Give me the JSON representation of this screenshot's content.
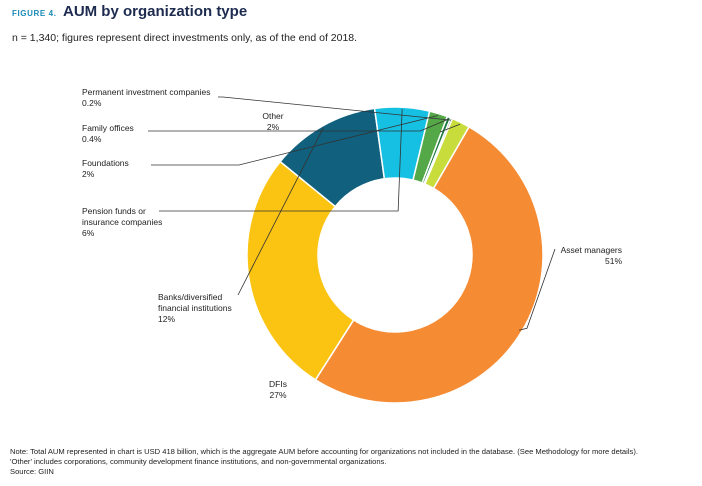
{
  "header": {
    "figure_label": "FIGURE 4.",
    "title": "AUM by organization type"
  },
  "subtitle": "n = 1,340; figures represent direct investments only, as of the end of 2018.",
  "chart_data": {
    "type": "pie",
    "style": "donut",
    "title": "AUM by organization type",
    "unit": "%",
    "slices": [
      {
        "label": "Asset managers",
        "value": 51,
        "display": "51%",
        "color": "#f58b33"
      },
      {
        "label": "DFIs",
        "value": 27,
        "display": "27%",
        "color": "#fbc412"
      },
      {
        "label": "Banks/diversified financial institutions",
        "value": 12,
        "display": "12%",
        "color": "#10607e"
      },
      {
        "label": "Pension funds or insurance companies",
        "value": 6,
        "display": "6%",
        "color": "#16c0e3"
      },
      {
        "label": "Foundations",
        "value": 2,
        "display": "2%",
        "color": "#54a847"
      },
      {
        "label": "Family offices",
        "value": 0.4,
        "display": "0.4%",
        "color": "#1d7a3f"
      },
      {
        "label": "Permanent investment companies",
        "value": 0.2,
        "display": "0.2%",
        "color": "#2a3f73"
      },
      {
        "label": "Other",
        "value": 2,
        "display": "2%",
        "color": "#c8dc3c"
      }
    ]
  },
  "labels": {
    "asset_managers": {
      "lines": [
        "Asset managers"
      ],
      "pct": "51%"
    },
    "dfis": {
      "lines": [
        "DFIs"
      ],
      "pct": "27%"
    },
    "banks": {
      "lines": [
        "Banks/diversified",
        "financial institutions"
      ],
      "pct": "12%"
    },
    "pension": {
      "lines": [
        "Pension funds or",
        "insurance companies"
      ],
      "pct": "6%"
    },
    "foundations": {
      "lines": [
        "Foundations"
      ],
      "pct": "2%"
    },
    "family": {
      "lines": [
        "Family offices"
      ],
      "pct": "0.4%"
    },
    "permanent": {
      "lines": [
        "Permanent investment companies"
      ],
      "pct": "0.2%"
    },
    "other": {
      "lines": [
        "Other"
      ],
      "pct": "2%"
    }
  },
  "notes": {
    "line1": "Note: Total AUM represented in chart is USD 418 billion, which is the aggregate AUM before accounting for organizations not included in the database. (See Methodology for more details).",
    "line2": "'Other' includes corporations, community development finance institutions, and non-governmental organizations.",
    "line3": "Source: GIIN"
  }
}
